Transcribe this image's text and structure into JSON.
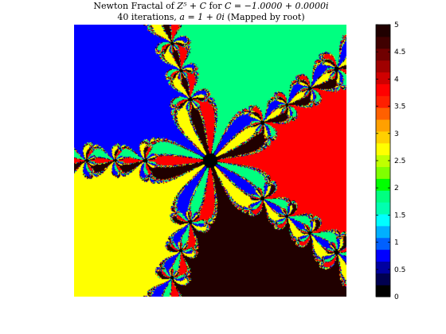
{
  "chart_data": {
    "type": "heatmap",
    "title": "Newton Fractal of Z^5 + C for C = -1.0000 + 0.0000i",
    "subtitle": "40 iterations, a = 1 + 0i (Mapped by root)",
    "title_parts": {
      "l1_pre": "Newton Fractal of ",
      "l1_math": "Z⁵ + C",
      "l1_mid": " for ",
      "l1_math2": "C = −1.0000 + 0.0000i",
      "l2_pre": "40 iterations, ",
      "l2_math": "a = 1 + 0i",
      "l2_post": " (Mapped by root)"
    },
    "function": "Z^5 + C",
    "C": [
      -1.0,
      0.0
    ],
    "a": [
      1,
      0
    ],
    "iterations": 40,
    "grid": false,
    "colorbar": {
      "placement": "right",
      "range": [
        0,
        5
      ],
      "ticks": [
        0,
        0.5,
        1,
        1.5,
        2,
        2.5,
        3,
        3.5,
        4,
        4.5,
        5
      ],
      "tick_labels": [
        "0",
        "0.5",
        "1",
        "1.5",
        "2",
        "2.5",
        "3",
        "3.5",
        "4",
        "4.5",
        "5"
      ],
      "colormap": [
        "#000000",
        "#000050",
        "#0000a0",
        "#0000ff",
        "#0060ff",
        "#00b0ff",
        "#00ffff",
        "#00ffb0",
        "#00ff80",
        "#00ff00",
        "#80ff00",
        "#c0ff00",
        "#ffff00",
        "#ffd000",
        "#ffa000",
        "#ff6000",
        "#ff2000",
        "#ff0000",
        "#d00000",
        "#a00000",
        "#700000",
        "#400000",
        "#200000"
      ]
    },
    "root_colors": {
      "root_1": "#ff0000",
      "root_2": "#ffff00",
      "root_3": "#00ff80",
      "root_4": "#0000ff",
      "root_5": "#200000"
    },
    "nonconvergent_color": "#000000"
  }
}
